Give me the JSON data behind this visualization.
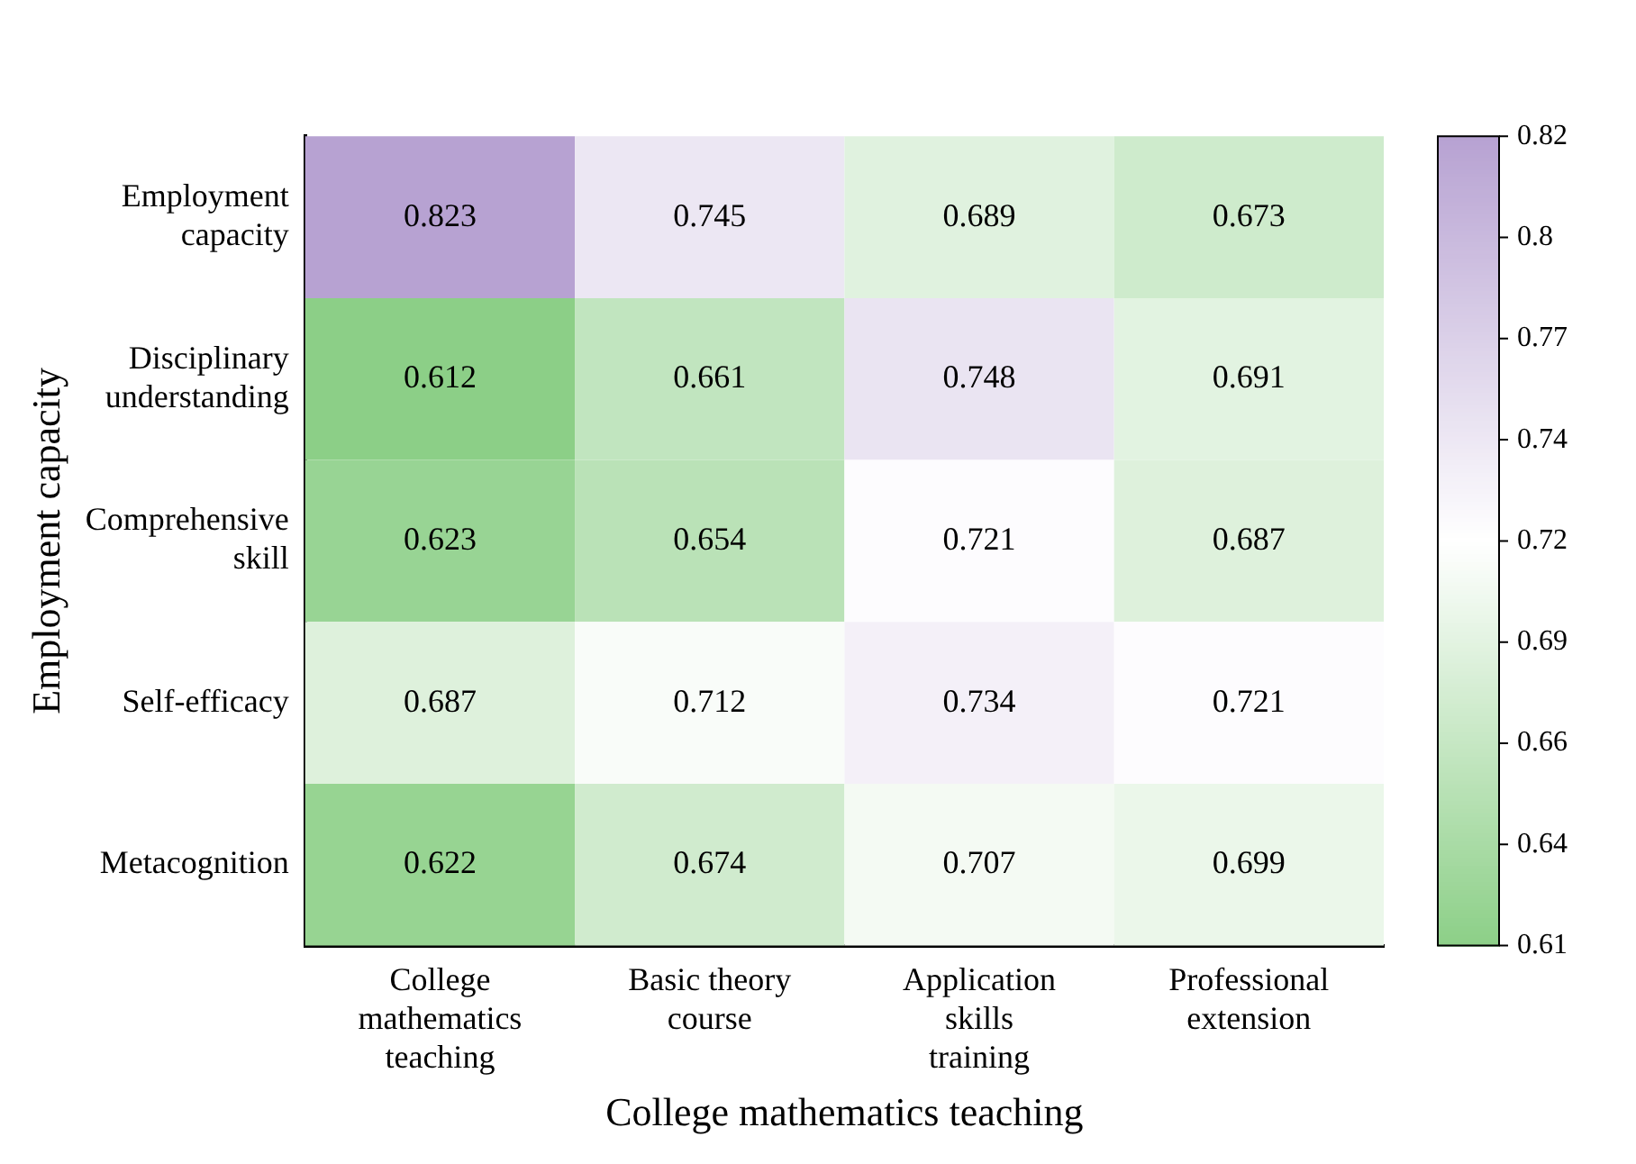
{
  "chart_data": {
    "type": "heatmap",
    "xlabel": "College mathematics teaching",
    "ylabel": "Employment capacity",
    "categories": [
      "College mathematics teaching",
      "Basic theory course",
      "Application skills training",
      "Professional extension"
    ],
    "y_categories": [
      "Employment capacity",
      "Disciplinary understanding",
      "Comprehensive skill",
      "Self-efficacy",
      "Metacognition"
    ],
    "cells": [
      [
        0.823,
        0.745,
        0.689,
        0.673
      ],
      [
        0.612,
        0.661,
        0.748,
        0.691
      ],
      [
        0.623,
        0.654,
        0.721,
        0.687
      ],
      [
        0.687,
        0.712,
        0.734,
        0.721
      ],
      [
        0.622,
        0.674,
        0.707,
        0.699
      ]
    ],
    "data_labels": true,
    "clim": [
      0.612,
      0.823
    ],
    "cticks": [
      {
        "value": 0.612,
        "label": "0.61"
      },
      {
        "value": 0.638375,
        "label": "0.64"
      },
      {
        "value": 0.66475,
        "label": "0.66"
      },
      {
        "value": 0.691125,
        "label": "0.69"
      },
      {
        "value": 0.7175,
        "label": "0.72"
      },
      {
        "value": 0.743875,
        "label": "0.74"
      },
      {
        "value": 0.77025,
        "label": "0.77"
      },
      {
        "value": 0.796625,
        "label": "0.8"
      },
      {
        "value": 0.823,
        "label": "0.82"
      }
    ]
  }
}
